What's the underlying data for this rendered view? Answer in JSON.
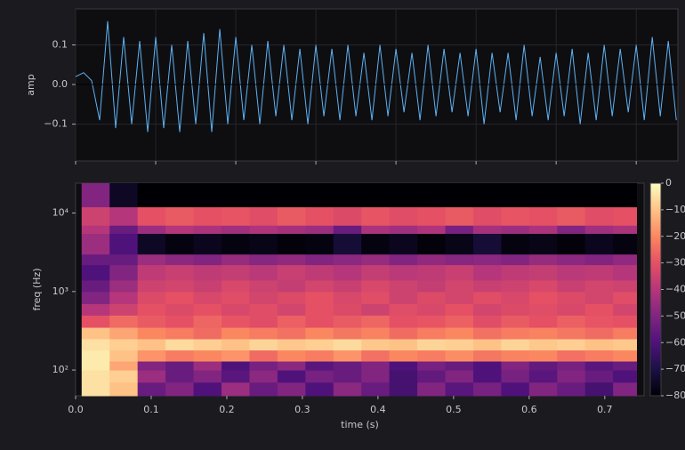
{
  "chart_data": [
    {
      "type": "line",
      "ylabel": "amp",
      "x": [
        0,
        0.01,
        0.02,
        0.03,
        0.04,
        0.05,
        0.06,
        0.07,
        0.08,
        0.09,
        0.1,
        0.11,
        0.12,
        0.13,
        0.14,
        0.15,
        0.16,
        0.17,
        0.18,
        0.19,
        0.2,
        0.21,
        0.22,
        0.23,
        0.24,
        0.25,
        0.26,
        0.27,
        0.28,
        0.29,
        0.3,
        0.31,
        0.32,
        0.33,
        0.34,
        0.35,
        0.36,
        0.37,
        0.38,
        0.39,
        0.4,
        0.41,
        0.42,
        0.43,
        0.44,
        0.45,
        0.46,
        0.47,
        0.48,
        0.49,
        0.5,
        0.51,
        0.52,
        0.53,
        0.54,
        0.55,
        0.56,
        0.57,
        0.58,
        0.59,
        0.6,
        0.61,
        0.62,
        0.63,
        0.64,
        0.65,
        0.66,
        0.67,
        0.68,
        0.69,
        0.7,
        0.71,
        0.72,
        0.73,
        0.74,
        0.75
      ],
      "series": [
        {
          "color": "#5eb2f2",
          "values": [
            0.02,
            0.03,
            0.01,
            -0.09,
            0.16,
            -0.11,
            0.12,
            -0.1,
            0.11,
            -0.12,
            0.12,
            -0.11,
            0.1,
            -0.12,
            0.11,
            -0.1,
            0.13,
            -0.12,
            0.14,
            -0.1,
            0.12,
            -0.09,
            0.1,
            -0.1,
            0.11,
            -0.08,
            0.1,
            -0.09,
            0.09,
            -0.1,
            0.1,
            -0.08,
            0.09,
            -0.09,
            0.1,
            -0.08,
            0.08,
            -0.09,
            0.1,
            -0.08,
            0.09,
            -0.07,
            0.08,
            -0.09,
            0.1,
            -0.08,
            0.09,
            -0.07,
            0.08,
            -0.08,
            0.09,
            -0.1,
            0.08,
            -0.07,
            0.08,
            -0.09,
            0.1,
            -0.08,
            0.07,
            -0.09,
            0.08,
            -0.08,
            0.09,
            -0.1,
            0.08,
            -0.09,
            0.1,
            -0.08,
            0.09,
            -0.07,
            0.1,
            -0.09,
            0.12,
            -0.08,
            0.11,
            -0.09
          ]
        }
      ],
      "xlim": [
        0,
        0.752
      ],
      "xticks": [
        0,
        0.1,
        0.2,
        0.3,
        0.4,
        0.5,
        0.6,
        0.7
      ],
      "ylim": [
        -0.193,
        0.191
      ],
      "yticks": [
        {
          "value": -0.1,
          "label": "−0.1"
        },
        {
          "value": 0,
          "label": "0.0"
        },
        0.1
      ],
      "grid": true
    },
    {
      "type": "heatmap",
      "xlabel": "time (s)",
      "ylabel": "freq (Hz)",
      "yscale": "log",
      "xlim": [
        0,
        0.752
      ],
      "xticks": [
        {
          "value": 0,
          "label": "0.0"
        },
        0.1,
        0.2,
        0.3,
        0.4,
        0.5,
        0.6,
        0.7
      ],
      "ylim": [
        47,
        24000
      ],
      "yticks": [
        {
          "value": 100,
          "label": "10²"
        },
        {
          "value": 1000,
          "label": "10³"
        },
        {
          "value": 10000,
          "label": "10⁴"
        }
      ],
      "time_bins": [
        0.008,
        0.045,
        0.082,
        0.119,
        0.156,
        0.193,
        0.23,
        0.267,
        0.304,
        0.341,
        0.378,
        0.415,
        0.452,
        0.489,
        0.526,
        0.563,
        0.6,
        0.637,
        0.674,
        0.711,
        0.742
      ],
      "freq_bins": [
        47,
        70,
        100,
        130,
        180,
        250,
        350,
        500,
        700,
        1000,
        1400,
        2200,
        3000,
        5500,
        7000,
        12000,
        24000
      ],
      "values": [
        [
          -5,
          -10,
          -55,
          -50,
          -60,
          -45,
          -55,
          -50,
          -60,
          -48,
          -55,
          -62,
          -50,
          -58,
          -52,
          -60,
          -50,
          -55,
          -62,
          -50
        ],
        [
          -5,
          -8,
          -45,
          -55,
          -50,
          -58,
          -48,
          -60,
          -52,
          -55,
          -50,
          -62,
          -56,
          -50,
          -60,
          -52,
          -58,
          -50,
          -55,
          -60
        ],
        [
          -3,
          -15,
          -50,
          -55,
          -45,
          -60,
          -52,
          -48,
          -58,
          -55,
          -50,
          -60,
          -52,
          -55,
          -60,
          -50,
          -56,
          -52,
          -58,
          -55
        ],
        [
          -3,
          -10,
          -18,
          -22,
          -20,
          -18,
          -25,
          -20,
          -22,
          -18,
          -24,
          -20,
          -22,
          -19,
          -23,
          -21,
          -20,
          -24,
          -22,
          -20
        ],
        [
          -5,
          -8,
          -10,
          -6,
          -8,
          -10,
          -7,
          -9,
          -8,
          -6,
          -9,
          -10,
          -7,
          -8,
          -10,
          -7,
          -9,
          -8,
          -10,
          -9
        ],
        [
          -10,
          -15,
          -20,
          -22,
          -25,
          -20,
          -22,
          -24,
          -20,
          -23,
          -21,
          -25,
          -22,
          -20,
          -24,
          -22,
          -21,
          -23,
          -25,
          -22
        ],
        [
          -30,
          -25,
          -28,
          -30,
          -26,
          -29,
          -31,
          -27,
          -30,
          -28,
          -26,
          -30,
          -29,
          -27,
          -31,
          -28,
          -30,
          -27,
          -29,
          -30
        ],
        [
          -40,
          -35,
          -30,
          -32,
          -30,
          -33,
          -31,
          -34,
          -30,
          -32,
          -35,
          -31,
          -33,
          -30,
          -34,
          -32,
          -31,
          -33,
          -30,
          -34
        ],
        [
          -50,
          -40,
          -32,
          -30,
          -33,
          -31,
          -34,
          -32,
          -30,
          -33,
          -31,
          -35,
          -32,
          -34,
          -31,
          -33,
          -30,
          -32,
          -34,
          -31
        ],
        [
          -55,
          -45,
          -35,
          -34,
          -36,
          -33,
          -35,
          -37,
          -34,
          -36,
          -33,
          -35,
          -37,
          -34,
          -36,
          -35,
          -33,
          -36,
          -34,
          -35
        ],
        [
          -60,
          -50,
          -38,
          -36,
          -38,
          -37,
          -39,
          -36,
          -38,
          -40,
          -37,
          -39,
          -38,
          -36,
          -40,
          -38,
          -37,
          -39,
          -38,
          -40
        ],
        [
          -55,
          -55,
          -45,
          -48,
          -50,
          -46,
          -49,
          -47,
          -50,
          -48,
          -46,
          -50,
          -47,
          -49,
          -48,
          -50,
          -46,
          -48,
          -50,
          -47
        ],
        [
          -45,
          -60,
          -75,
          -78,
          -76,
          -78,
          -77,
          -79,
          -78,
          -72,
          -78,
          -76,
          -79,
          -77,
          -72,
          -78,
          -77,
          -79,
          -76,
          -78
        ],
        [
          -40,
          -55,
          -45,
          -40,
          -42,
          -44,
          -41,
          -43,
          -45,
          -55,
          -42,
          -44,
          -41,
          -52,
          -43,
          -45,
          -42,
          -50,
          -44,
          -42
        ],
        [
          -35,
          -40,
          -30,
          -28,
          -30,
          -29,
          -31,
          -28,
          -30,
          -32,
          -29,
          -31,
          -30,
          -28,
          -31,
          -29,
          -30,
          -28,
          -31,
          -30
        ],
        [
          -50,
          -75,
          -80,
          -80,
          -80,
          -80,
          -80,
          -80,
          -80,
          -80,
          -80,
          -80,
          -80,
          -80,
          -80,
          -80,
          -80,
          -80,
          -80,
          -80
        ]
      ],
      "colormap": [
        "#000004",
        "#1c1044",
        "#4f127b",
        "#812581",
        "#b5367a",
        "#e55064",
        "#fb8761",
        "#fec287",
        "#fcfdbf"
      ],
      "clim": [
        -80,
        0
      ],
      "cticks": [
        {
          "value": -80,
          "label": "−80"
        },
        {
          "value": -70,
          "label": "−70"
        },
        {
          "value": -60,
          "label": "−60"
        },
        {
          "value": -50,
          "label": "−50"
        },
        {
          "value": -40,
          "label": "−40"
        },
        {
          "value": -30,
          "label": "−30"
        },
        {
          "value": -20,
          "label": "−20"
        },
        {
          "value": -10,
          "label": "−10"
        },
        0
      ]
    }
  ]
}
